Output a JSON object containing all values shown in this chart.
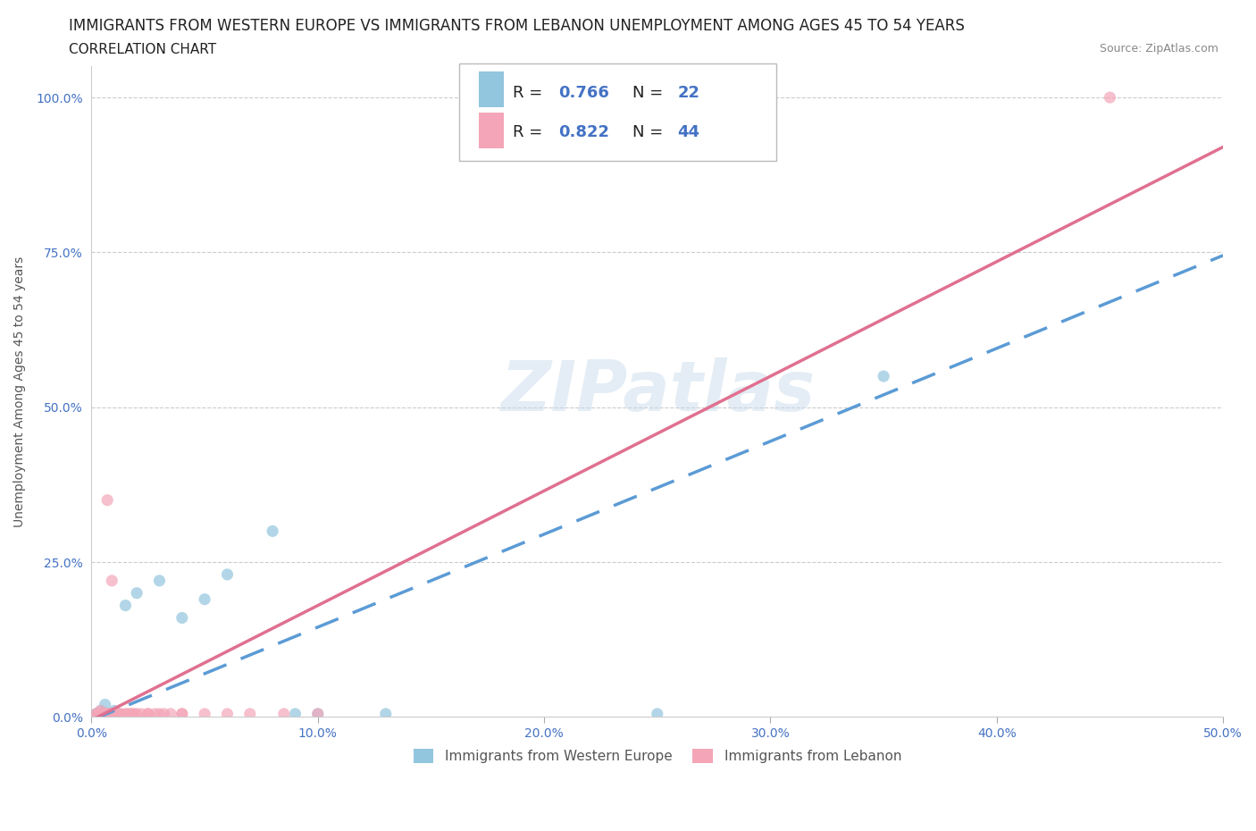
{
  "title_line1": "IMMIGRANTS FROM WESTERN EUROPE VS IMMIGRANTS FROM LEBANON UNEMPLOYMENT AMONG AGES 45 TO 54 YEARS",
  "title_line2": "CORRELATION CHART",
  "source": "Source: ZipAtlas.com",
  "ylabel": "Unemployment Among Ages 45 to 54 years",
  "xlim": [
    0.0,
    0.5
  ],
  "ylim": [
    0.0,
    1.05
  ],
  "watermark": "ZIPatlas",
  "legend_r1": "R = 0.766",
  "legend_n1": "N = 22",
  "legend_r2": "R = 0.822",
  "legend_n2": "N = 44",
  "blue_color": "#92c5de",
  "pink_color": "#f4a6b8",
  "blue_line_color": "#5b9bd5",
  "pink_line_color": "#e07090",
  "axis_label_color": "#4472c4",
  "blue_scatter": [
    [
      0.002,
      0.005
    ],
    [
      0.003,
      0.005
    ],
    [
      0.004,
      0.01
    ],
    [
      0.005,
      0.005
    ],
    [
      0.006,
      0.02
    ],
    [
      0.007,
      0.005
    ],
    [
      0.008,
      0.005
    ],
    [
      0.009,
      0.005
    ],
    [
      0.01,
      0.01
    ],
    [
      0.012,
      0.005
    ],
    [
      0.015,
      0.18
    ],
    [
      0.02,
      0.2
    ],
    [
      0.03,
      0.22
    ],
    [
      0.04,
      0.16
    ],
    [
      0.05,
      0.19
    ],
    [
      0.06,
      0.23
    ],
    [
      0.08,
      0.3
    ],
    [
      0.09,
      0.005
    ],
    [
      0.1,
      0.005
    ],
    [
      0.13,
      0.005
    ],
    [
      0.25,
      0.005
    ],
    [
      0.35,
      0.55
    ]
  ],
  "pink_scatter": [
    [
      0.002,
      0.005
    ],
    [
      0.003,
      0.005
    ],
    [
      0.003,
      0.005
    ],
    [
      0.004,
      0.005
    ],
    [
      0.004,
      0.01
    ],
    [
      0.005,
      0.005
    ],
    [
      0.005,
      0.005
    ],
    [
      0.005,
      0.005
    ],
    [
      0.006,
      0.005
    ],
    [
      0.006,
      0.005
    ],
    [
      0.006,
      0.005
    ],
    [
      0.007,
      0.005
    ],
    [
      0.007,
      0.35
    ],
    [
      0.008,
      0.005
    ],
    [
      0.008,
      0.005
    ],
    [
      0.008,
      0.005
    ],
    [
      0.009,
      0.22
    ],
    [
      0.01,
      0.005
    ],
    [
      0.01,
      0.005
    ],
    [
      0.01,
      0.005
    ],
    [
      0.011,
      0.005
    ],
    [
      0.012,
      0.005
    ],
    [
      0.013,
      0.005
    ],
    [
      0.015,
      0.005
    ],
    [
      0.016,
      0.005
    ],
    [
      0.017,
      0.005
    ],
    [
      0.018,
      0.005
    ],
    [
      0.019,
      0.005
    ],
    [
      0.02,
      0.005
    ],
    [
      0.022,
      0.005
    ],
    [
      0.025,
      0.005
    ],
    [
      0.025,
      0.005
    ],
    [
      0.028,
      0.005
    ],
    [
      0.03,
      0.005
    ],
    [
      0.032,
      0.005
    ],
    [
      0.035,
      0.005
    ],
    [
      0.04,
      0.005
    ],
    [
      0.04,
      0.005
    ],
    [
      0.05,
      0.005
    ],
    [
      0.06,
      0.005
    ],
    [
      0.07,
      0.005
    ],
    [
      0.085,
      0.005
    ],
    [
      0.1,
      0.005
    ],
    [
      0.45,
      1.0
    ]
  ],
  "x_ticks": [
    0.0,
    0.1,
    0.2,
    0.3,
    0.4,
    0.5
  ],
  "x_tick_labels": [
    "0.0%",
    "10.0%",
    "20.0%",
    "30.0%",
    "40.0%",
    "50.0%"
  ],
  "y_ticks": [
    0.0,
    0.25,
    0.5,
    0.75,
    1.0
  ],
  "y_tick_labels": [
    "0.0%",
    "25.0%",
    "50.0%",
    "75.0%",
    "100.0%"
  ],
  "blue_slope": 1.5,
  "blue_intercept": -0.005,
  "pink_slope": 1.85,
  "pink_intercept": -0.005,
  "title_fontsize": 12,
  "subtitle_fontsize": 11,
  "axis_fontsize": 10,
  "tick_fontsize": 10
}
